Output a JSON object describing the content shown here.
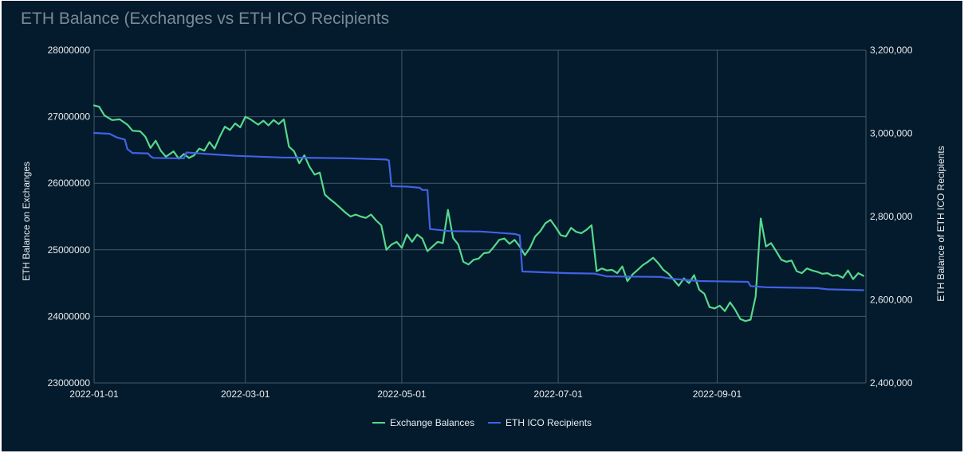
{
  "chart_data": {
    "type": "line",
    "title": "ETH Balance (Exchanges vs ETH ICO Recipients",
    "ylabel": "ETH Balance on Exchanges",
    "y2label": "ETH Balance of ETH ICO Recipients",
    "ylim": [
      23000000,
      28000000
    ],
    "y2lim": [
      2400000,
      3200000
    ],
    "yticks": [
      "23000000",
      "24000000",
      "25000000",
      "26000000",
      "27000000",
      "28000000"
    ],
    "y2ticks": [
      "2,400,000",
      "2,600,000",
      "2,800,000",
      "3,000,000",
      "3,200,000"
    ],
    "xticks": [
      "2022-01-01",
      "2022-03-01",
      "2022-05-01",
      "2022-07-01",
      "2022-09-01"
    ],
    "xlim": [
      "2022-01-01",
      "2022-10-29"
    ],
    "grid": true,
    "legend_position": "bottom",
    "series": [
      {
        "name": "Exchange Balances",
        "axis": "left",
        "color": "#57d98c",
        "points": [
          [
            "2022-01-01",
            27170000
          ],
          [
            "2022-01-03",
            27150000
          ],
          [
            "2022-01-05",
            27020000
          ],
          [
            "2022-01-08",
            26950000
          ],
          [
            "2022-01-11",
            26960000
          ],
          [
            "2022-01-14",
            26880000
          ],
          [
            "2022-01-16",
            26790000
          ],
          [
            "2022-01-19",
            26780000
          ],
          [
            "2022-01-21",
            26700000
          ],
          [
            "2022-01-23",
            26530000
          ],
          [
            "2022-01-25",
            26640000
          ],
          [
            "2022-01-27",
            26490000
          ],
          [
            "2022-01-29",
            26400000
          ],
          [
            "2022-02-01",
            26480000
          ],
          [
            "2022-02-03",
            26370000
          ],
          [
            "2022-02-05",
            26440000
          ],
          [
            "2022-02-07",
            26380000
          ],
          [
            "2022-02-09",
            26420000
          ],
          [
            "2022-02-11",
            26520000
          ],
          [
            "2022-02-13",
            26490000
          ],
          [
            "2022-02-15",
            26620000
          ],
          [
            "2022-02-17",
            26520000
          ],
          [
            "2022-02-19",
            26700000
          ],
          [
            "2022-02-21",
            26850000
          ],
          [
            "2022-02-23",
            26800000
          ],
          [
            "2022-02-25",
            26900000
          ],
          [
            "2022-02-27",
            26840000
          ],
          [
            "2022-03-01",
            27000000
          ],
          [
            "2022-03-03",
            26960000
          ],
          [
            "2022-03-06",
            26880000
          ],
          [
            "2022-03-08",
            26940000
          ],
          [
            "2022-03-10",
            26870000
          ],
          [
            "2022-03-12",
            26950000
          ],
          [
            "2022-03-14",
            26890000
          ],
          [
            "2022-03-16",
            26960000
          ],
          [
            "2022-03-18",
            26550000
          ],
          [
            "2022-03-20",
            26480000
          ],
          [
            "2022-03-22",
            26300000
          ],
          [
            "2022-03-24",
            26420000
          ],
          [
            "2022-03-26",
            26250000
          ],
          [
            "2022-03-28",
            26130000
          ],
          [
            "2022-03-30",
            26160000
          ],
          [
            "2022-04-01",
            25830000
          ],
          [
            "2022-04-03",
            25760000
          ],
          [
            "2022-04-05",
            25700000
          ],
          [
            "2022-04-07",
            25630000
          ],
          [
            "2022-04-09",
            25560000
          ],
          [
            "2022-04-11",
            25500000
          ],
          [
            "2022-04-13",
            25530000
          ],
          [
            "2022-04-15",
            25500000
          ],
          [
            "2022-04-17",
            25480000
          ],
          [
            "2022-04-19",
            25530000
          ],
          [
            "2022-04-21",
            25440000
          ],
          [
            "2022-04-23",
            25370000
          ],
          [
            "2022-04-25",
            25000000
          ],
          [
            "2022-04-27",
            25080000
          ],
          [
            "2022-04-29",
            25120000
          ],
          [
            "2022-05-01",
            25030000
          ],
          [
            "2022-05-03",
            25230000
          ],
          [
            "2022-05-05",
            25120000
          ],
          [
            "2022-05-07",
            25230000
          ],
          [
            "2022-05-09",
            25170000
          ],
          [
            "2022-05-11",
            24980000
          ],
          [
            "2022-05-13",
            25050000
          ],
          [
            "2022-05-15",
            25120000
          ],
          [
            "2022-05-17",
            25100000
          ],
          [
            "2022-05-19",
            25600000
          ],
          [
            "2022-05-21",
            25180000
          ],
          [
            "2022-05-23",
            25080000
          ],
          [
            "2022-05-25",
            24820000
          ],
          [
            "2022-05-27",
            24780000
          ],
          [
            "2022-05-29",
            24850000
          ],
          [
            "2022-05-31",
            24870000
          ],
          [
            "2022-06-02",
            24950000
          ],
          [
            "2022-06-04",
            24960000
          ],
          [
            "2022-06-06",
            25050000
          ],
          [
            "2022-06-08",
            25150000
          ],
          [
            "2022-06-10",
            25170000
          ],
          [
            "2022-06-12",
            25090000
          ],
          [
            "2022-06-14",
            25150000
          ],
          [
            "2022-06-16",
            25050000
          ],
          [
            "2022-06-18",
            24920000
          ],
          [
            "2022-06-20",
            25030000
          ],
          [
            "2022-06-22",
            25200000
          ],
          [
            "2022-06-24",
            25280000
          ],
          [
            "2022-06-26",
            25400000
          ],
          [
            "2022-06-28",
            25450000
          ],
          [
            "2022-06-30",
            25340000
          ],
          [
            "2022-07-02",
            25220000
          ],
          [
            "2022-07-04",
            25200000
          ],
          [
            "2022-07-06",
            25330000
          ],
          [
            "2022-07-08",
            25270000
          ],
          [
            "2022-07-10",
            25250000
          ],
          [
            "2022-07-12",
            25300000
          ],
          [
            "2022-07-14",
            25370000
          ],
          [
            "2022-07-16",
            24680000
          ],
          [
            "2022-07-18",
            24720000
          ],
          [
            "2022-07-20",
            24690000
          ],
          [
            "2022-07-22",
            24700000
          ],
          [
            "2022-07-24",
            24650000
          ],
          [
            "2022-07-26",
            24750000
          ],
          [
            "2022-07-28",
            24530000
          ],
          [
            "2022-07-30",
            24630000
          ],
          [
            "2022-08-01",
            24700000
          ],
          [
            "2022-08-03",
            24770000
          ],
          [
            "2022-08-05",
            24820000
          ],
          [
            "2022-08-07",
            24880000
          ],
          [
            "2022-08-09",
            24800000
          ],
          [
            "2022-08-11",
            24700000
          ],
          [
            "2022-08-13",
            24640000
          ],
          [
            "2022-08-15",
            24550000
          ],
          [
            "2022-08-17",
            24460000
          ],
          [
            "2022-08-19",
            24570000
          ],
          [
            "2022-08-21",
            24500000
          ],
          [
            "2022-08-23",
            24620000
          ],
          [
            "2022-08-25",
            24400000
          ],
          [
            "2022-08-27",
            24340000
          ],
          [
            "2022-08-29",
            24140000
          ],
          [
            "2022-08-31",
            24120000
          ],
          [
            "2022-09-02",
            24160000
          ],
          [
            "2022-09-04",
            24080000
          ],
          [
            "2022-09-06",
            24210000
          ],
          [
            "2022-09-08",
            24100000
          ],
          [
            "2022-09-10",
            23960000
          ],
          [
            "2022-09-12",
            23930000
          ],
          [
            "2022-09-14",
            23950000
          ],
          [
            "2022-09-16",
            24300000
          ],
          [
            "2022-09-18",
            25470000
          ],
          [
            "2022-09-20",
            25050000
          ],
          [
            "2022-09-22",
            25100000
          ],
          [
            "2022-09-24",
            24980000
          ],
          [
            "2022-09-26",
            24850000
          ],
          [
            "2022-09-28",
            24820000
          ],
          [
            "2022-09-30",
            24840000
          ],
          [
            "2022-10-02",
            24680000
          ],
          [
            "2022-10-04",
            24650000
          ],
          [
            "2022-10-06",
            24720000
          ],
          [
            "2022-10-08",
            24690000
          ],
          [
            "2022-10-10",
            24670000
          ],
          [
            "2022-10-12",
            24640000
          ],
          [
            "2022-10-14",
            24650000
          ],
          [
            "2022-10-16",
            24610000
          ],
          [
            "2022-10-18",
            24620000
          ],
          [
            "2022-10-20",
            24580000
          ],
          [
            "2022-10-22",
            24690000
          ],
          [
            "2022-10-24",
            24560000
          ],
          [
            "2022-10-26",
            24650000
          ],
          [
            "2022-10-28",
            24610000
          ]
        ]
      },
      {
        "name": "ETH ICO Recipients",
        "axis": "right",
        "color": "#4361e6",
        "points": [
          [
            "2022-01-01",
            3001000
          ],
          [
            "2022-01-07",
            2999000
          ],
          [
            "2022-01-10",
            2990000
          ],
          [
            "2022-01-13",
            2985000
          ],
          [
            "2022-01-14",
            2962000
          ],
          [
            "2022-01-16",
            2953000
          ],
          [
            "2022-01-21",
            2952000
          ],
          [
            "2022-01-22",
            2952000
          ],
          [
            "2022-01-23",
            2945000
          ],
          [
            "2022-01-24",
            2941000
          ],
          [
            "2022-02-02",
            2940000
          ],
          [
            "2022-02-05",
            2940000
          ],
          [
            "2022-02-06",
            2954000
          ],
          [
            "2022-02-15",
            2950000
          ],
          [
            "2022-02-25",
            2946000
          ],
          [
            "2022-03-15",
            2942000
          ],
          [
            "2022-04-10",
            2940000
          ],
          [
            "2022-04-25",
            2937000
          ],
          [
            "2022-04-26",
            2935000
          ],
          [
            "2022-04-27",
            2873000
          ],
          [
            "2022-05-03",
            2872000
          ],
          [
            "2022-05-08",
            2869000
          ],
          [
            "2022-05-09",
            2864000
          ],
          [
            "2022-05-11",
            2864000
          ],
          [
            "2022-05-12",
            2770000
          ],
          [
            "2022-05-20",
            2765000
          ],
          [
            "2022-06-01",
            2764000
          ],
          [
            "2022-06-14",
            2758000
          ],
          [
            "2022-06-16",
            2755000
          ],
          [
            "2022-06-17",
            2668000
          ],
          [
            "2022-06-25",
            2666000
          ],
          [
            "2022-07-05",
            2664000
          ],
          [
            "2022-07-15",
            2663000
          ],
          [
            "2022-07-20",
            2656000
          ],
          [
            "2022-08-10",
            2655000
          ],
          [
            "2022-08-15",
            2650000
          ],
          [
            "2022-08-25",
            2645000
          ],
          [
            "2022-09-13",
            2643000
          ],
          [
            "2022-09-14",
            2633000
          ],
          [
            "2022-09-20",
            2630000
          ],
          [
            "2022-10-10",
            2628000
          ],
          [
            "2022-10-14",
            2625000
          ],
          [
            "2022-10-28",
            2623000
          ]
        ]
      }
    ]
  }
}
